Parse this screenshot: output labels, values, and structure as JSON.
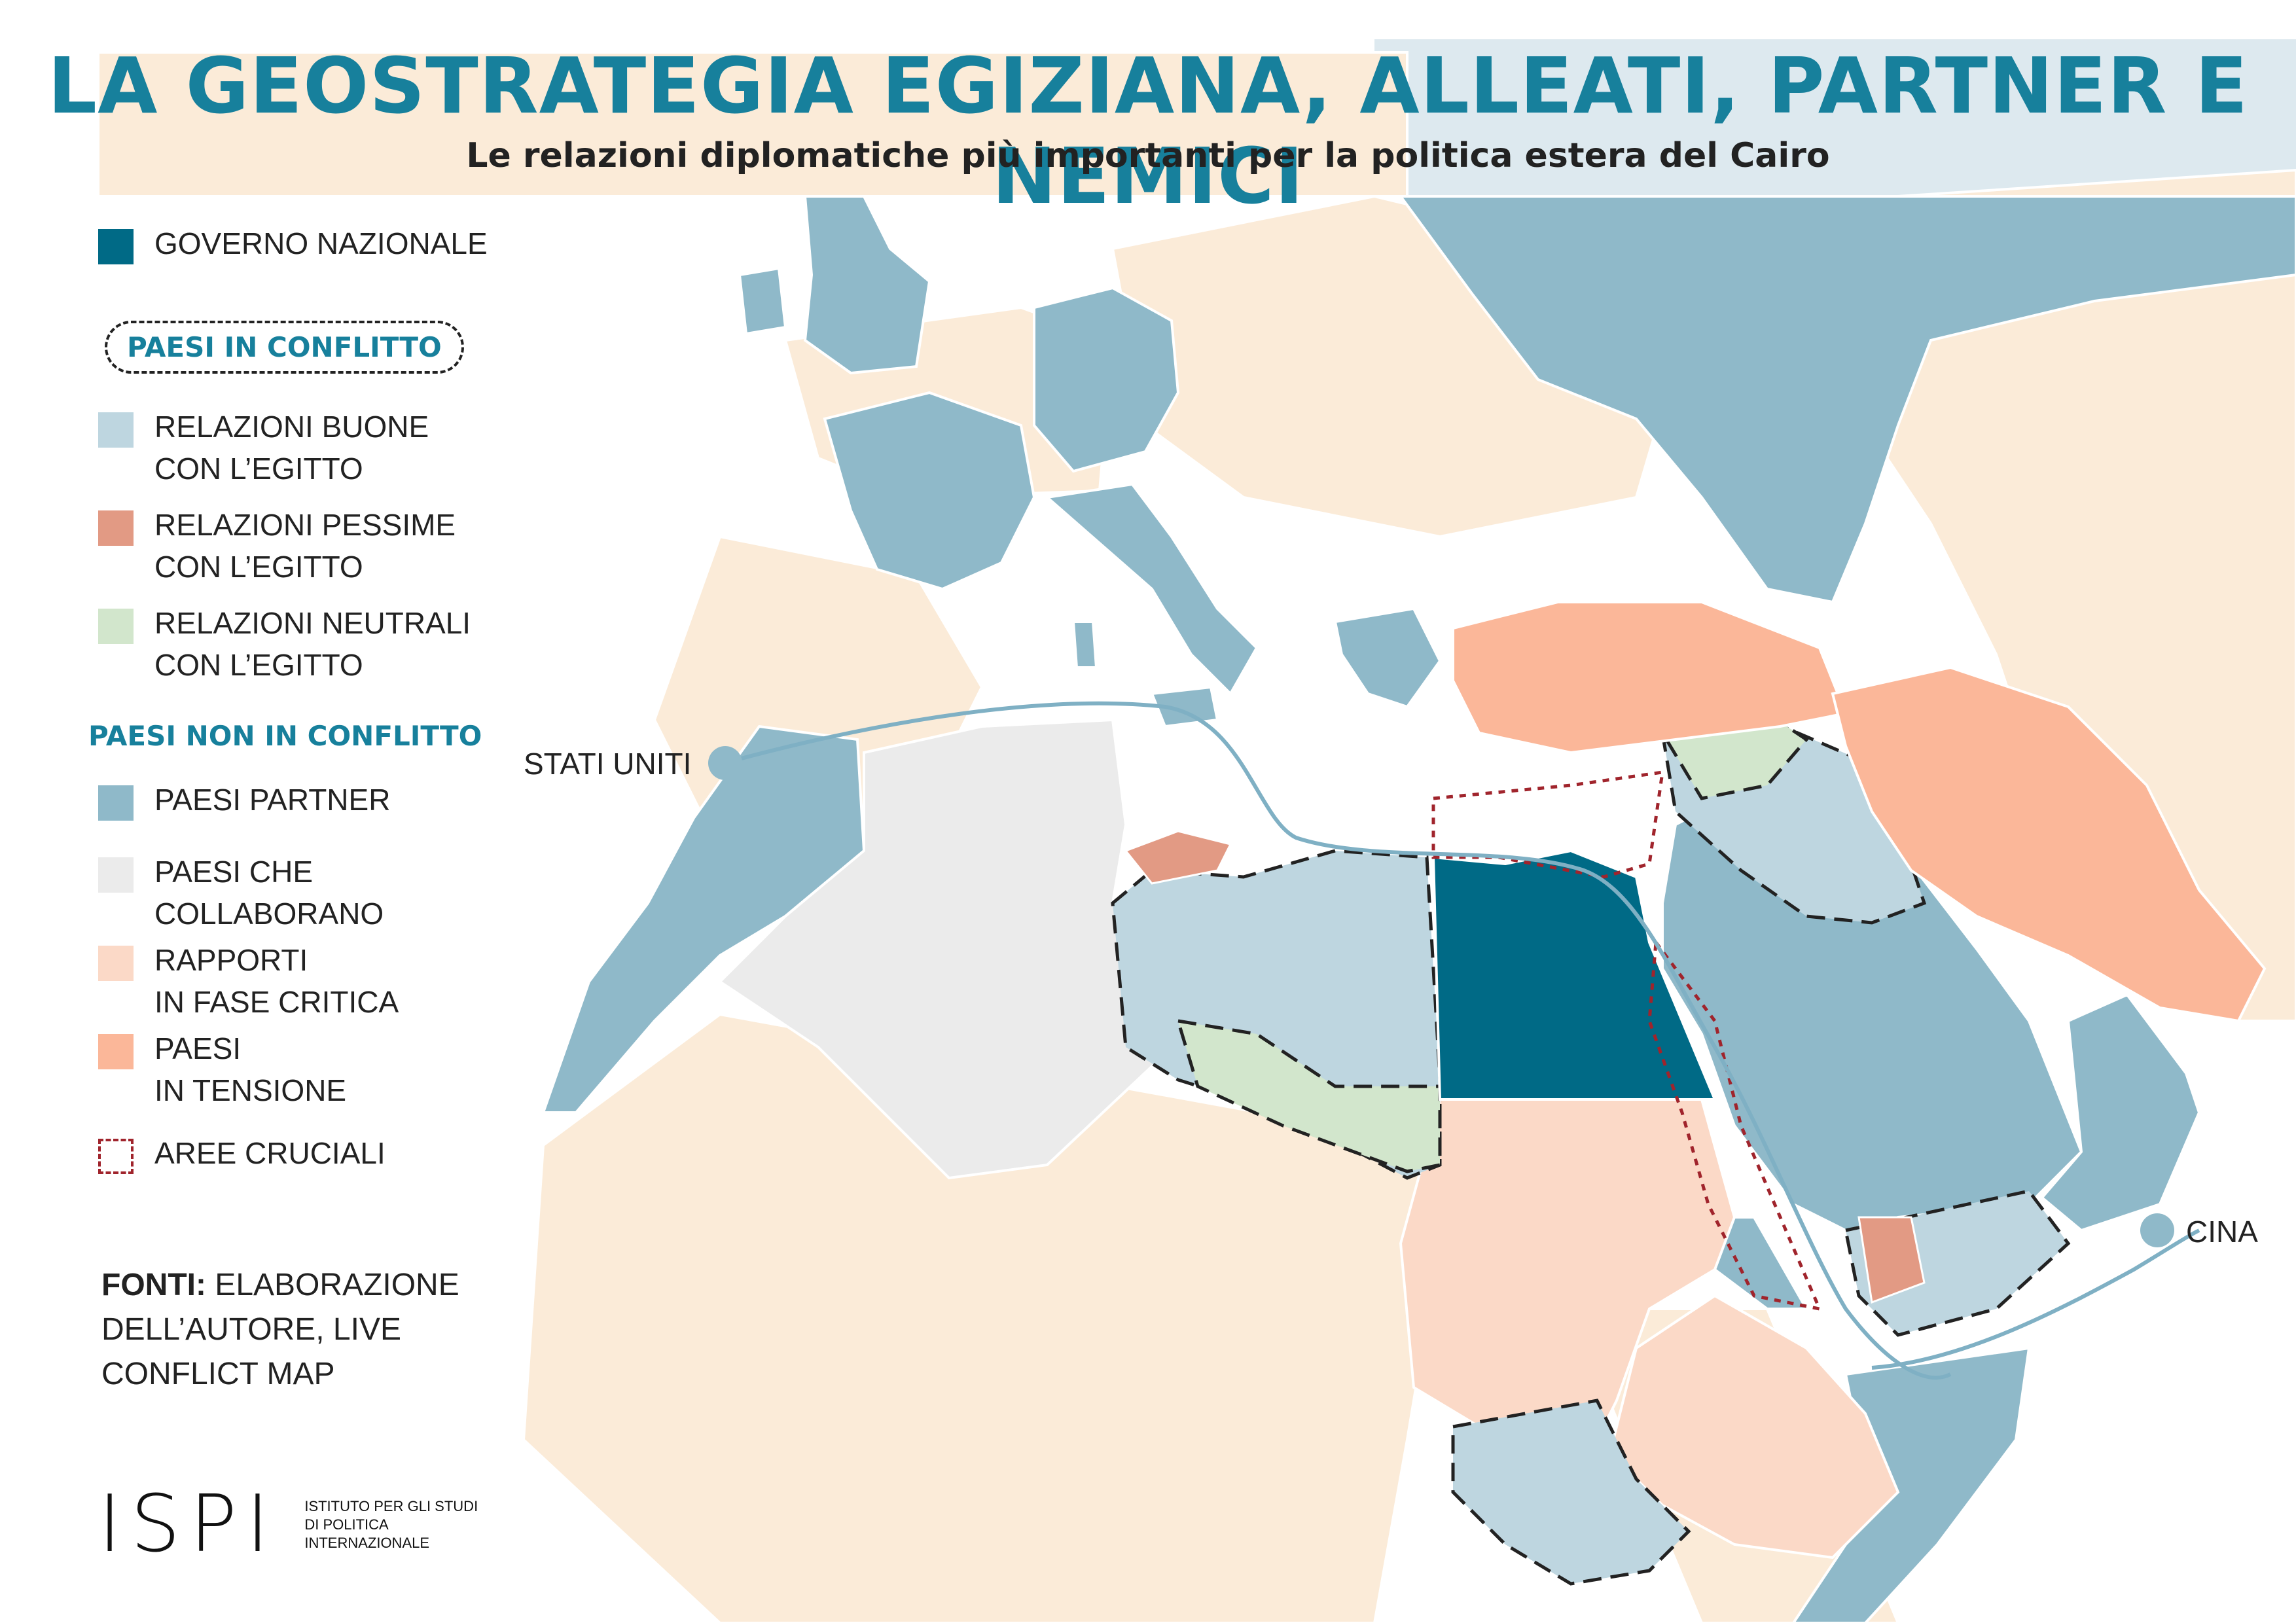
{
  "title": "LA GEOSTRATEGIA EGIZIANA, ALLEATI, PARTNER E NEMICI",
  "subtitle": "Le relazioni diplomatiche più importanti per la politica estera del Cairo",
  "colors": {
    "title": "#17809c",
    "governo_nazionale": "#006a86",
    "relazioni_buone": "#bed6e0",
    "relazioni_pessime": "#e29a84",
    "relazioni_neutrali": "#d2e6cc",
    "paesi_partner": "#8fb9c9",
    "paesi_che_collaborano": "#ebebeb",
    "rapporti_in_fase_critica": "#fbd9c7",
    "paesi_in_tensione": "#fbb799",
    "aree_cruciali": "#a0242c",
    "background_land": "#fbebd8",
    "sea": "#ffffff",
    "route": "#7fb0c4"
  },
  "legend": {
    "governo_nazionale": "GOVERNO NAZIONALE",
    "paesi_in_conflitto": "PAESI IN CONFLITTO",
    "relazioni_buone": [
      "RELAZIONI BUONE",
      "CON L’EGITTO"
    ],
    "relazioni_pessime": [
      "RELAZIONI PESSIME",
      "CON L’EGITTO"
    ],
    "relazioni_neutrali": [
      "RELAZIONI NEUTRALI",
      "CON L’EGITTO"
    ],
    "paesi_non_in_conflitto": "PAESI NON IN CONFLITTO",
    "paesi_partner": "PAESI PARTNER",
    "paesi_che_collaborano": [
      "PAESI CHE",
      "COLLABORANO"
    ],
    "rapporti_in_fase_critica": [
      "RAPPORTI",
      "IN FASE CRITICA"
    ],
    "paesi_in_tensione": [
      "PAESI",
      "IN TENSIONE"
    ],
    "aree_cruciali": "AREE CRUCIALI"
  },
  "sources": {
    "label": "FONTI:",
    "text_1": " ELABORAZIONE",
    "text_2": "DELL’AUTORE, LIVE",
    "text_3": "CONFLICT MAP"
  },
  "logo": {
    "mark": "ISPI",
    "line1": "ISTITUTO PER GLI STUDI",
    "line2": "DI POLITICA",
    "line3": "INTERNAZIONALE"
  },
  "map_labels": {
    "usa": "STATI UNITI",
    "china": "CINA"
  }
}
